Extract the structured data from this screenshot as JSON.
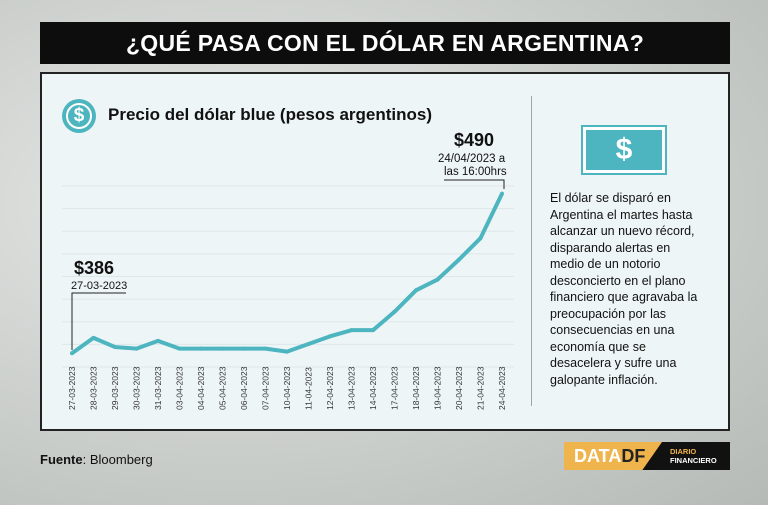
{
  "header": {
    "title": "¿QUÉ PASA CON EL DÓLAR EN ARGENTINA?"
  },
  "icons": {
    "chart_icon": "dollar-circle-icon",
    "bill_icon": "dollar-bill-icon",
    "dollar_symbol": "$"
  },
  "description": "El dólar se disparó en Argentina el martes hasta alcanzar un nuevo récord, disparando alertas en medio de un notorio desconcierto en el plano financiero que agravaba la preocupación por las consecuencias en una economía que se desacelera y sufre una galopante inflación.",
  "footer": {
    "source_label": "Fuente",
    "source_value": ": Bloomberg",
    "logo_data": "DATA",
    "logo_df": "DF",
    "logo_diario": "DIARIO",
    "logo_financiero": "FINANCIERO"
  },
  "colors": {
    "line": "#4db5bf",
    "title_bar": "#0d0d0d",
    "accent": "#f0b44c"
  },
  "chart_data": {
    "type": "line",
    "title": "Precio del dólar blue (pesos argentinos)",
    "xlabel": "",
    "ylabel": "",
    "grid": true,
    "ylim": [
      377,
      495
    ],
    "categories": [
      "27-03-2023",
      "28-03-2023",
      "29-03-2023",
      "30-03-2023",
      "31-03-2023",
      "03-04-2023",
      "04-04-2023",
      "05-04-2023",
      "06-04-2023",
      "07-04-2023",
      "10-04-2023",
      "11-04-2023",
      "12-04-2023",
      "13-04-2023",
      "14-04-2023",
      "17-04-2023",
      "18-04-2023",
      "19-04-2023",
      "20-04-2023",
      "21-04-2023",
      "24-04-2023"
    ],
    "values": [
      386,
      396,
      390,
      389,
      394,
      389,
      389,
      389,
      389,
      389,
      387,
      392,
      397,
      401,
      401,
      413,
      427,
      434,
      447,
      461,
      490
    ],
    "annotations": [
      {
        "value": "$386",
        "text": "27-03-2023"
      },
      {
        "value": "$490",
        "text": "24/04/2023 a",
        "text2": "las 16:00hrs"
      }
    ]
  }
}
